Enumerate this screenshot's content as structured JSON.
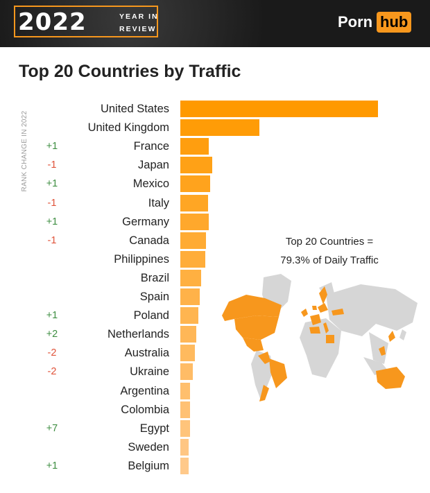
{
  "header": {
    "year": "2022",
    "subtitle_line1": "YEAR IN",
    "subtitle_line2": "REVIEW",
    "logo_part1": "Porn",
    "logo_part2": "hub",
    "brand_color": "#f7971d"
  },
  "colors": {
    "bar_start": "#ff9900",
    "bar_end": "#ffc98a",
    "positive_change": "#3e8e41",
    "negative_change": "#e0533a",
    "map_land": "#d6d6d6",
    "map_highlight": "#f7971d"
  },
  "annotation": {
    "line1": "Top 20 Countries =",
    "line2": "79.3% of Daily Traffic"
  },
  "chart_data": {
    "type": "bar",
    "orientation": "horizontal",
    "title": "Top 20 Countries by Traffic",
    "side_label": "RANK CHANGE IN 2022",
    "categories": [
      "United States",
      "United Kingdom",
      "France",
      "Japan",
      "Mexico",
      "Italy",
      "Germany",
      "Canada",
      "Philippines",
      "Brazil",
      "Spain",
      "Poland",
      "Netherlands",
      "Australia",
      "Ukraine",
      "Argentina",
      "Colombia",
      "Egypt",
      "Sweden",
      "Belgium"
    ],
    "values": [
      100,
      40,
      14.5,
      16,
      15,
      14.2,
      14.3,
      13,
      12.8,
      10.5,
      9.8,
      9.2,
      8.2,
      7.5,
      6.3,
      5,
      5,
      4.8,
      4.3,
      4.1
    ],
    "rank_changes": [
      "",
      "",
      "+1",
      "-1",
      "+1",
      "-1",
      "+1",
      "-1",
      "",
      "",
      "",
      "+1",
      "+2",
      "-2",
      "-2",
      "",
      "",
      "+7",
      "",
      "+1"
    ],
    "xlim": [
      0,
      100
    ],
    "grid": false,
    "legend": "none"
  }
}
